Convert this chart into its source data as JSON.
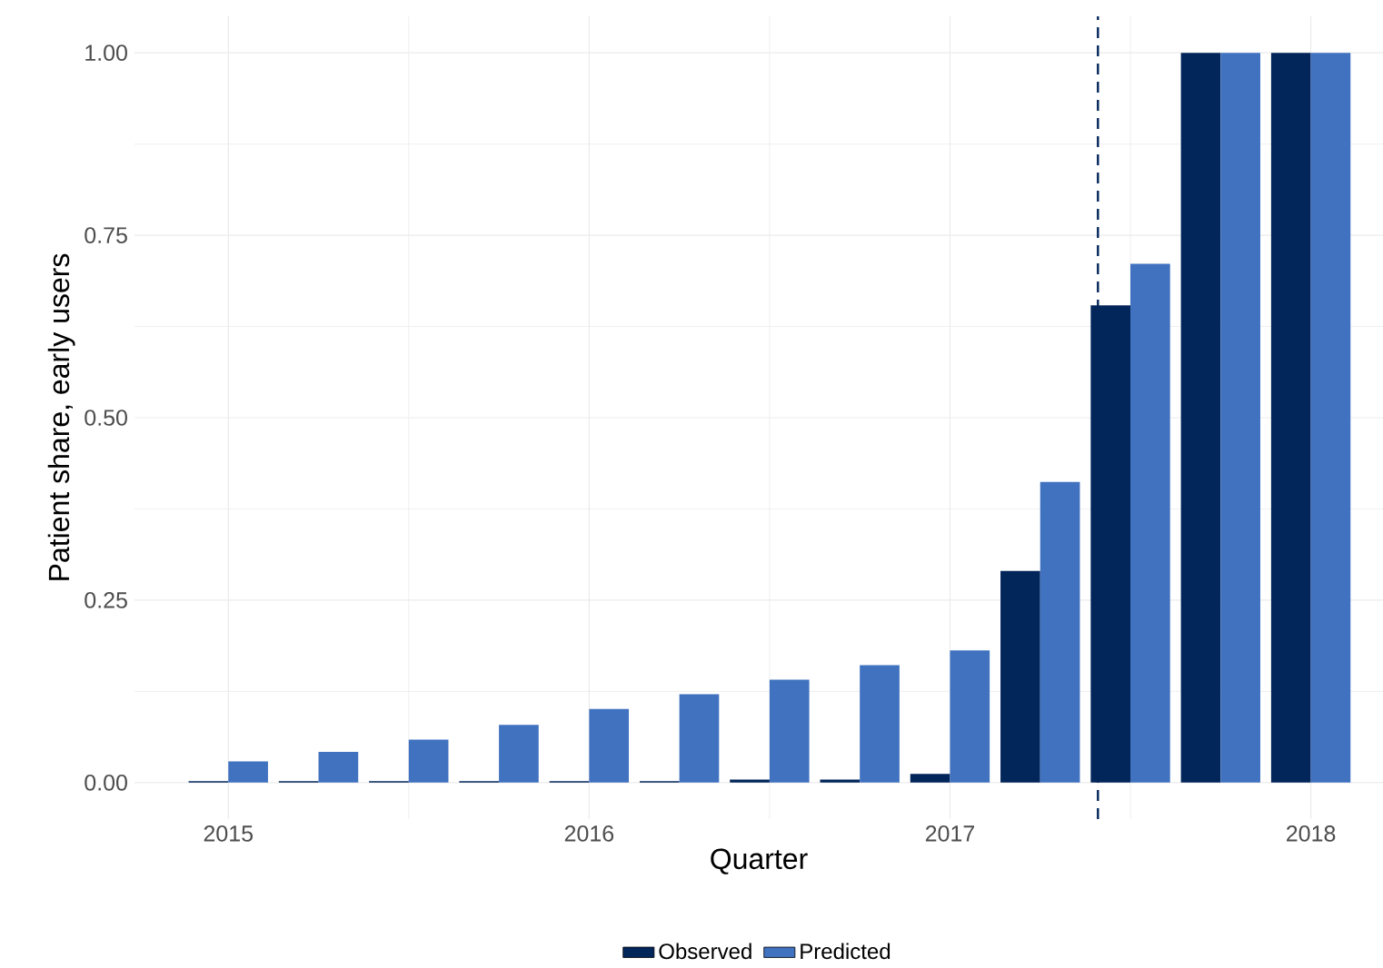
{
  "chart_data": {
    "type": "bar",
    "xlabel": "Quarter",
    "ylabel": "Patient share, early users",
    "x": [
      2015.0,
      2015.25,
      2015.5,
      2015.75,
      2016.0,
      2016.25,
      2016.5,
      2016.75,
      2017.0,
      2017.25,
      2017.5,
      2017.75,
      2018.0
    ],
    "series": [
      {
        "name": "Observed",
        "color": "#02255a",
        "values": [
          0.002,
          0.002,
          0.002,
          0.002,
          0.002,
          0.002,
          0.004,
          0.004,
          0.012,
          0.29,
          0.654,
          1.0,
          1.0
        ]
      },
      {
        "name": "Predicted",
        "color": "#4072c0",
        "values": [
          0.029,
          0.042,
          0.059,
          0.079,
          0.101,
          0.121,
          0.141,
          0.161,
          0.181,
          0.412,
          0.711,
          1.0,
          1.0
        ]
      }
    ],
    "xlim": [
      2014.74,
      2018.2
    ],
    "xticks": [
      2015,
      2016,
      2017,
      2018
    ],
    "ylim": [
      -0.05,
      1.05
    ],
    "yticks": [
      {
        "value": 0,
        "label": "0.00"
      },
      {
        "value": 0.25,
        "label": "0.25"
      },
      {
        "value": 0.5,
        "label": "0.50"
      },
      {
        "value": 0.75,
        "label": "0.75"
      },
      {
        "value": 1,
        "label": "1.00"
      }
    ],
    "ref_lines": [
      {
        "axis": "x",
        "value": 2017.41,
        "color": "#02255a",
        "line_style": "dashed"
      }
    ],
    "grid": true,
    "legend": "bottom"
  }
}
